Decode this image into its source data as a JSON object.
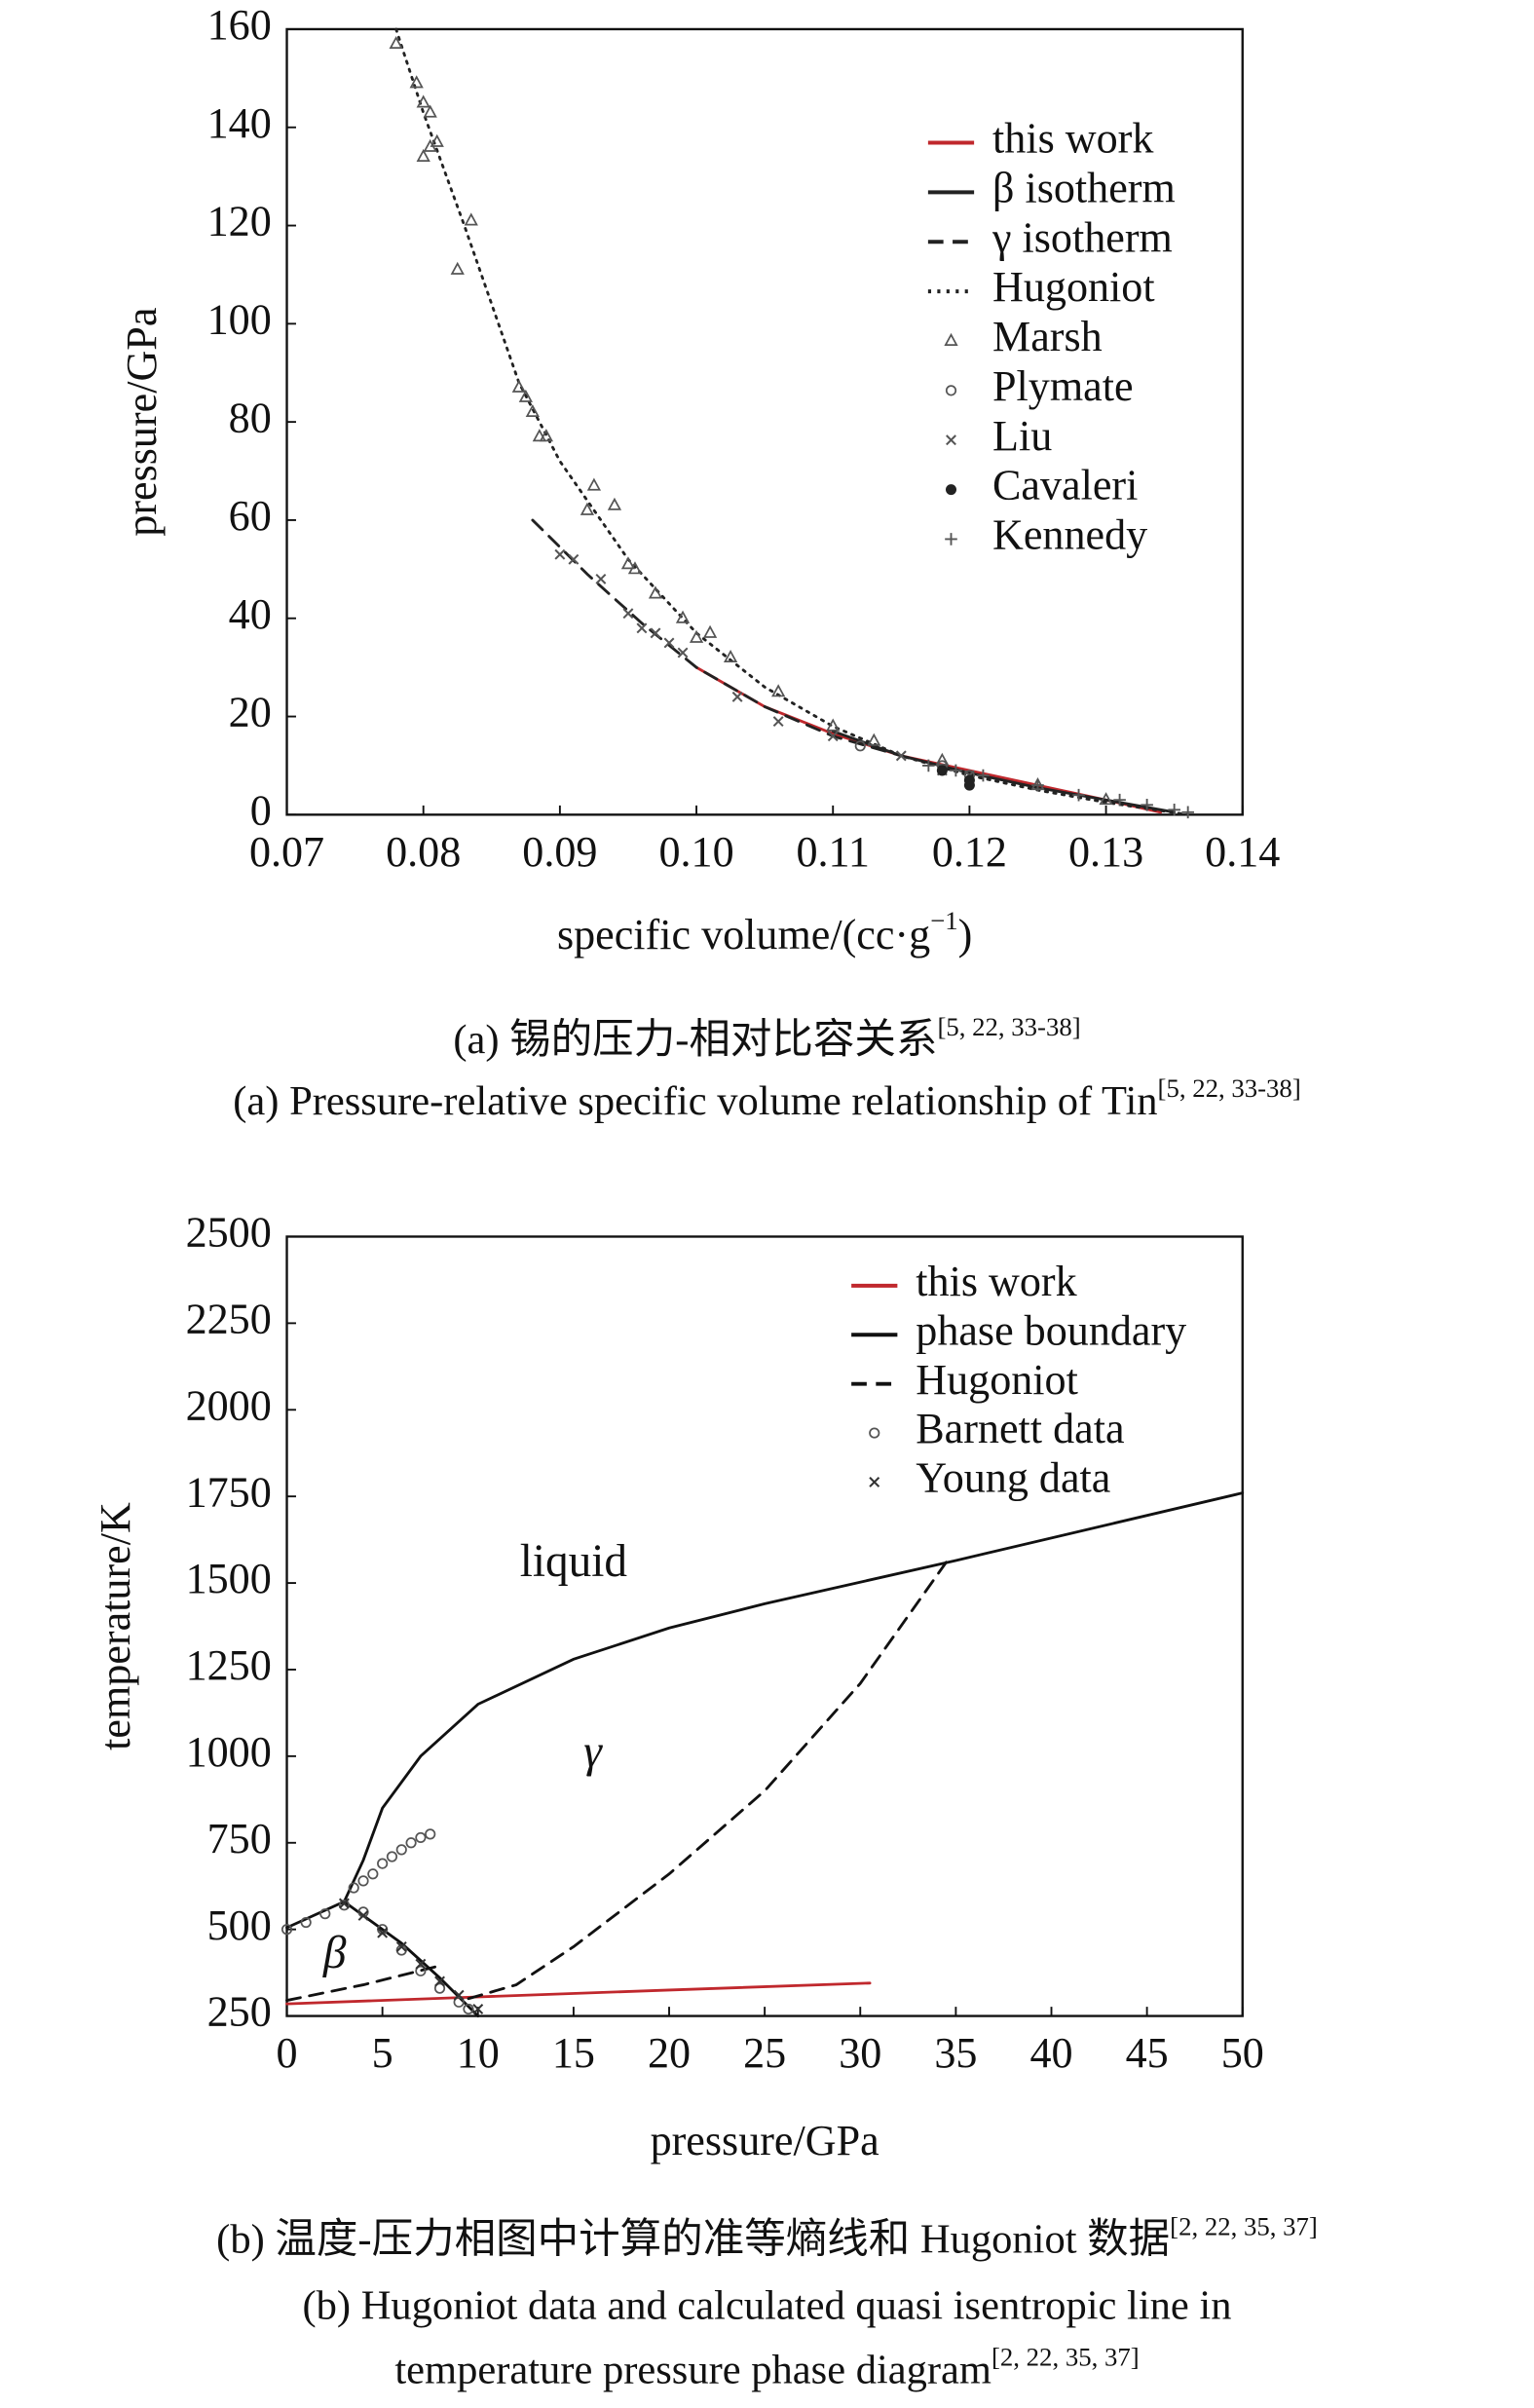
{
  "chart_data": [
    {
      "type": "line",
      "x_label": [
        "specific volume/(cc·g",
        "−1",
        ")"
      ],
      "y_label": "pressure/GPa",
      "caption_cn": "(a) 锡的压力-相对比容关系",
      "caption_cn_ref": "[5, 22, 33-38]",
      "caption_en": "(a) Pressure-relative specific volume relationship of Tin",
      "caption_en_ref": "[5, 22, 33-38]",
      "xlim": [
        0.07,
        0.14
      ],
      "xticks": [
        0.07,
        0.08,
        0.09,
        {
          "value": 0.1,
          "label": "0.10"
        },
        0.11,
        0.12,
        0.13,
        0.14
      ],
      "ylim": [
        0,
        160
      ],
      "yticks": [
        0,
        20,
        40,
        60,
        80,
        100,
        120,
        140,
        160
      ],
      "legend": "upper right",
      "series": [
        {
          "name": "this work",
          "color": "#c0282d",
          "style": "solid",
          "x": [
            0.1,
            0.105,
            0.11,
            0.115,
            0.12,
            0.125,
            0.13,
            0.134
          ],
          "values": [
            30,
            22,
            16.5,
            12,
            9,
            6,
            3,
            0.5
          ]
        },
        {
          "name": "β isotherm",
          "color": "#222222",
          "style": "solid",
          "x": [
            0.11,
            0.115,
            0.12,
            0.125,
            0.13,
            0.135
          ],
          "values": [
            17,
            12,
            8.5,
            5.5,
            3,
            0.5
          ]
        },
        {
          "name": "γ isotherm",
          "color": "#222222",
          "style": "dashed",
          "x": [
            0.088,
            0.092,
            0.096,
            0.1,
            0.105,
            0.11,
            0.115
          ],
          "values": [
            60,
            49,
            39,
            30,
            22,
            16,
            12
          ]
        },
        {
          "name": "Hugoniot",
          "color": "#222222",
          "style": "dotted",
          "x": [
            0.078,
            0.08,
            0.083,
            0.087,
            0.09,
            0.095,
            0.1,
            0.105,
            0.11,
            0.115,
            0.12,
            0.125,
            0.13,
            0.136
          ],
          "values": [
            160,
            143,
            120,
            88,
            72,
            52,
            37,
            26,
            18,
            12,
            8,
            5,
            2.5,
            0
          ]
        },
        {
          "name": "Marsh",
          "color": "#555555",
          "marker": "triangle",
          "x": [
            0.078,
            0.0795,
            0.08,
            0.0805,
            0.08,
            0.0805,
            0.081,
            0.0825,
            0.0835,
            0.087,
            0.0875,
            0.088,
            0.0885,
            0.089,
            0.092,
            0.0925,
            0.094,
            0.095,
            0.0955,
            0.097,
            0.099,
            0.1,
            0.101,
            0.1025,
            0.106,
            0.11,
            0.113,
            0.118,
            0.125,
            0.13
          ],
          "values": [
            157,
            149,
            145,
            143,
            134,
            136,
            137,
            111,
            121,
            87,
            85,
            82,
            77,
            77,
            62,
            67,
            63,
            51,
            50,
            45,
            40,
            36,
            37,
            32,
            25,
            18,
            15,
            11,
            6,
            3
          ]
        },
        {
          "name": "Plymate",
          "color": "#555555",
          "marker": "circle",
          "x": [
            0.112,
            0.118,
            0.12
          ],
          "values": [
            14,
            10,
            8
          ]
        },
        {
          "name": "Liu",
          "color": "#555555",
          "marker": "cross",
          "x": [
            0.09,
            0.091,
            0.093,
            0.095,
            0.096,
            0.097,
            0.098,
            0.099,
            0.103,
            0.106,
            0.11,
            0.115,
            0.118,
            0.12
          ],
          "values": [
            53,
            52,
            48,
            41,
            38,
            37,
            35,
            33,
            24,
            19,
            16,
            12,
            9,
            8
          ]
        },
        {
          "name": "Cavaleri",
          "color": "#222222",
          "marker": "dot",
          "x": [
            0.118,
            0.12,
            0.12
          ],
          "values": [
            9,
            7,
            6
          ]
        },
        {
          "name": "Kennedy",
          "color": "#555555",
          "marker": "plus",
          "x": [
            0.117,
            0.119,
            0.121,
            0.125,
            0.128,
            0.131,
            0.133,
            0.135,
            0.136
          ],
          "values": [
            10,
            9,
            8,
            6,
            4,
            3,
            2,
            1,
            0.5
          ]
        }
      ]
    },
    {
      "type": "line",
      "x_label": [
        "pressure/GPa"
      ],
      "y_label": "temperature/K",
      "caption_cn": "(b) 温度-压力相图中计算的准等熵线和 Hugoniot 数据",
      "caption_cn_ref": "[2, 22, 35, 37]",
      "caption_en": "(b) Hugoniot data and calculated quasi isentropic line in",
      "caption_en2": "temperature pressure phase diagram",
      "caption_en_ref": "[2, 22, 35, 37]",
      "xlim": [
        0,
        50
      ],
      "xticks": [
        0,
        5,
        10,
        15,
        20,
        25,
        30,
        35,
        40,
        45,
        50
      ],
      "ylim": [
        250,
        2500
      ],
      "yticks": [
        250,
        500,
        750,
        1000,
        1250,
        1500,
        1750,
        2000,
        2250,
        2500
      ],
      "legend": "upper right",
      "annotations": [
        "liquid",
        "γ",
        "β"
      ],
      "series": [
        {
          "name": "this work",
          "color": "#c0282d",
          "style": "solid",
          "x": [
            0,
            10,
            20,
            30.5
          ],
          "values": [
            285,
            305,
            325,
            345
          ]
        },
        {
          "name": "phase boundary",
          "color": "#111111",
          "style": "solid",
          "x": [
            0,
            3,
            4,
            5,
            7,
            10,
            15,
            20,
            25,
            35,
            50,
            null,
            3,
            6,
            8,
            10
          ],
          "values": [
            505,
            580,
            700,
            850,
            1000,
            1150,
            1280,
            1370,
            1440,
            1565,
            1760,
            null,
            580,
            460,
            360,
            250
          ]
        },
        {
          "name": "Hugoniot",
          "color": "#111111",
          "style": "dashed",
          "x": [
            0,
            4,
            8,
            null,
            9.5,
            12,
            15,
            20,
            25,
            30,
            34.5
          ],
          "values": [
            295,
            340,
            395,
            null,
            300,
            340,
            450,
            660,
            900,
            1210,
            1560
          ]
        },
        {
          "name": "Barnett data",
          "color": "#555555",
          "marker": "circle",
          "x": [
            0,
            1,
            2,
            3,
            3.5,
            4,
            4.5,
            5,
            5.5,
            6,
            6.5,
            7,
            7.5,
            4,
            5,
            6,
            7,
            8,
            9,
            9.5
          ],
          "values": [
            500,
            520,
            545,
            570,
            620,
            640,
            660,
            690,
            710,
            730,
            750,
            765,
            775,
            550,
            500,
            440,
            380,
            330,
            290,
            270
          ]
        },
        {
          "name": "Young data",
          "color": "#333333",
          "marker": "cross",
          "x": [
            3,
            4,
            5,
            6,
            7,
            8,
            9,
            10
          ],
          "values": [
            575,
            540,
            490,
            450,
            400,
            350,
            310,
            270
          ]
        }
      ]
    }
  ]
}
